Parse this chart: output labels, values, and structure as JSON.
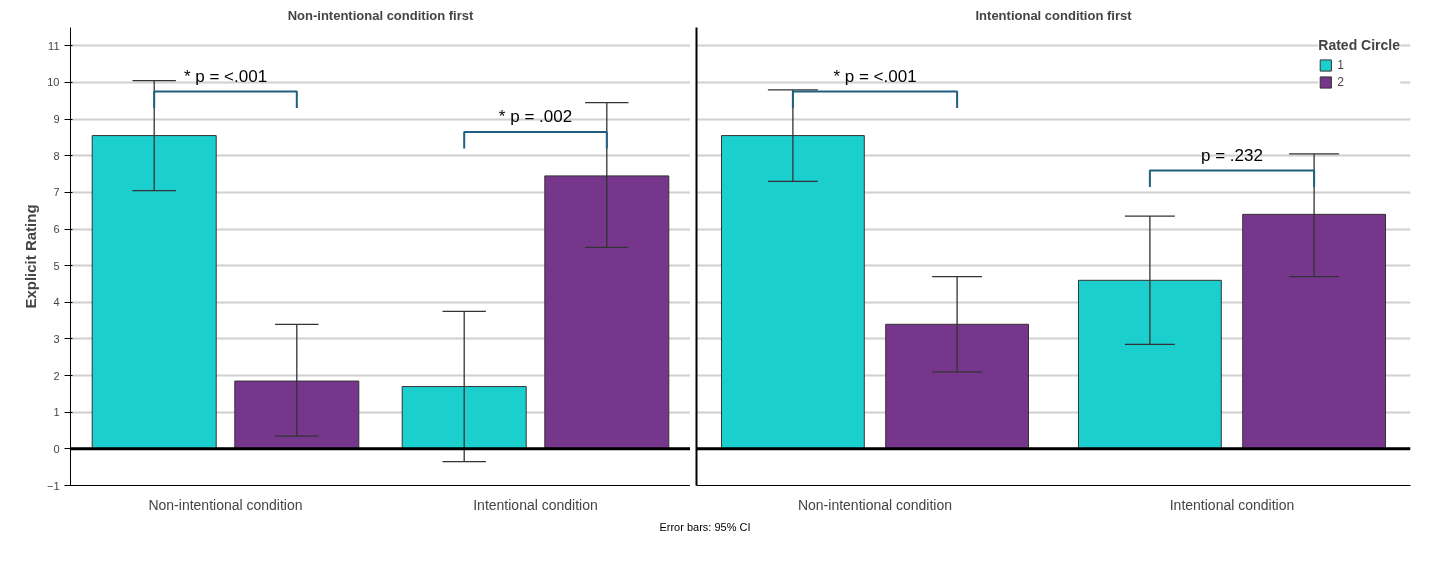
{
  "chart_data": [
    {
      "type": "bar",
      "title": "Non-intentional condition first",
      "ylabel": "Explicit Rating",
      "categories": [
        "Non-intentional condition",
        "Intentional condition"
      ],
      "series": [
        {
          "color": "#1ccfcf",
          "values": [
            8.55,
            1.7
          ],
          "errors": [
            [
              7.05,
              10.05
            ],
            [
              -0.35,
              3.75
            ]
          ]
        },
        {
          "color": "#76368c",
          "values": [
            1.85,
            7.45
          ],
          "errors": [
            [
              0.35,
              3.4
            ],
            [
              5.5,
              9.45
            ]
          ]
        }
      ],
      "ylim": [
        -1,
        11.5
      ],
      "yticks": [
        -1,
        0,
        1,
        2,
        3,
        4,
        5,
        6,
        7,
        8,
        9,
        10,
        11
      ],
      "grid": "y",
      "legend": false,
      "ref_lines": [
        {
          "axis": "y",
          "value": 0,
          "color": "#000000"
        }
      ],
      "annotations": [
        "* p = <.001",
        "* p = .002"
      ]
    },
    {
      "type": "bar",
      "title": "Intentional condition first",
      "categories": [
        "Non-intentional condition",
        "Intentional condition"
      ],
      "legend_title": "Rated Circle",
      "series": [
        {
          "name": "1",
          "color": "#1ccfcf",
          "values": [
            8.55,
            4.6
          ],
          "errors": [
            [
              7.3,
              9.8
            ],
            [
              2.85,
              6.35
            ]
          ]
        },
        {
          "name": "2",
          "color": "#76368c",
          "values": [
            3.4,
            6.4
          ],
          "errors": [
            [
              2.1,
              4.7
            ],
            [
              4.7,
              8.05
            ]
          ]
        }
      ],
      "ylim": [
        -1,
        11.5
      ],
      "yticks": [
        -1,
        0,
        1,
        2,
        3,
        4,
        5,
        6,
        7,
        8,
        9,
        10,
        11
      ],
      "grid": "y",
      "legend": "top right",
      "tick_labels": "x",
      "ref_lines": [
        {
          "axis": "y",
          "value": 0,
          "color": "#000000"
        }
      ],
      "annotations": [
        "* p = <.001",
        "p = .232",
        "Error bars: 95% CI"
      ]
    }
  ]
}
